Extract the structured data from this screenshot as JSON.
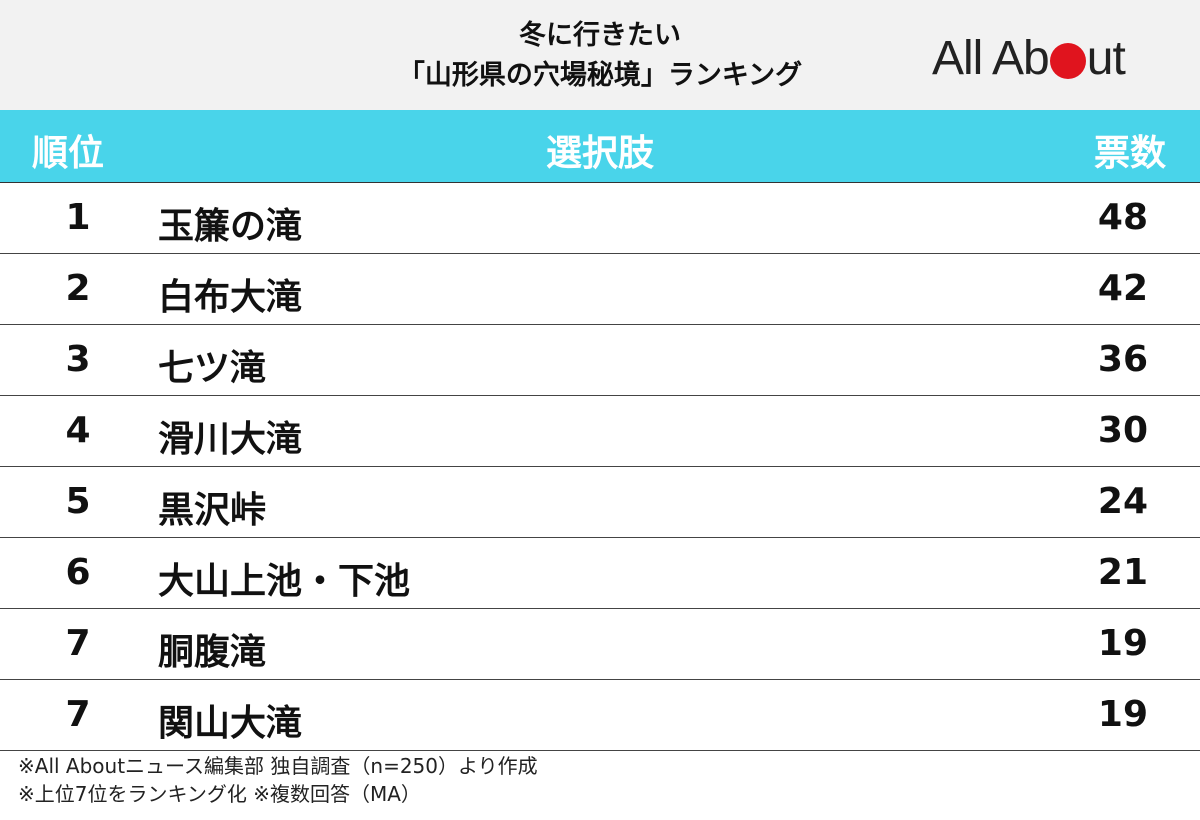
{
  "header": {
    "title_line1": "冬に行きたい",
    "title_line2": "「山形県の穴場秘境」ランキング",
    "logo_left": "All Ab",
    "logo_right": "ut"
  },
  "colors": {
    "header_bg": "#f2f2f2",
    "table_header_bg": "#49d4ea",
    "logo_dot": "#e0141e"
  },
  "table": {
    "columns": [
      "順位",
      "選択肢",
      "票数"
    ],
    "rows": [
      {
        "rank": "1",
        "name": "玉簾の滝",
        "votes": "48"
      },
      {
        "rank": "2",
        "name": "白布大滝",
        "votes": "42"
      },
      {
        "rank": "3",
        "name": "七ツ滝",
        "votes": "36"
      },
      {
        "rank": "4",
        "name": "滑川大滝",
        "votes": "30"
      },
      {
        "rank": "5",
        "name": "黒沢峠",
        "votes": "24"
      },
      {
        "rank": "6",
        "name": "大山上池・下池",
        "votes": "21"
      },
      {
        "rank": "7",
        "name": "胴腹滝",
        "votes": "19"
      },
      {
        "rank": "7",
        "name": "関山大滝",
        "votes": "19"
      }
    ]
  },
  "footer": {
    "note1": "※All Aboutニュース編集部 独自調査（n=250）より作成",
    "note2": "※上位7位をランキング化 ※複数回答（MA）"
  },
  "chart_data": {
    "type": "table",
    "title": "冬に行きたい「山形県の穴場秘境」ランキング",
    "columns": [
      "順位",
      "選択肢",
      "票数"
    ],
    "categories": [
      "玉簾の滝",
      "白布大滝",
      "七ツ滝",
      "滑川大滝",
      "黒沢峠",
      "大山上池・下池",
      "胴腹滝",
      "関山大滝"
    ],
    "ranks": [
      1,
      2,
      3,
      4,
      5,
      6,
      7,
      7
    ],
    "values": [
      48,
      42,
      36,
      30,
      24,
      21,
      19,
      19
    ]
  }
}
